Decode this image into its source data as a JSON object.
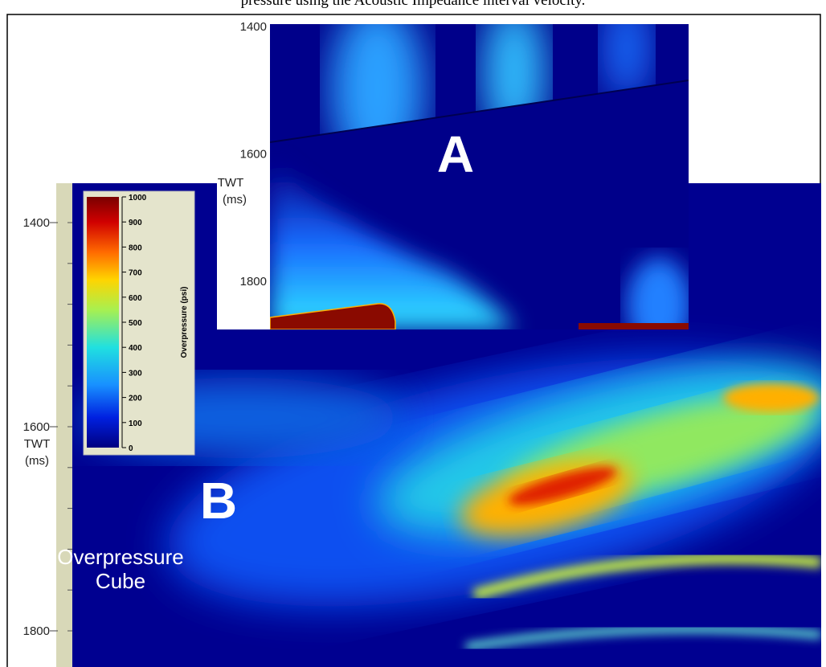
{
  "caption": "pressure using the Acoustic Impedance interval velocity.",
  "panel_a": {
    "label": "A",
    "axis_ticks": [
      1400,
      1600,
      1800
    ],
    "axis_title": [
      "TWT",
      "(ms)"
    ]
  },
  "panel_b": {
    "label": "B",
    "title": [
      "Overpressure",
      "Cube"
    ],
    "axis_ticks": [
      1400,
      1600,
      1800
    ],
    "axis_title": [
      "TWT",
      "(ms)"
    ]
  },
  "colorbar": {
    "title": "Overpressure (psi)",
    "ticks": [
      1000,
      900,
      800,
      700,
      600,
      500,
      400,
      300,
      200,
      100,
      0
    ]
  }
}
